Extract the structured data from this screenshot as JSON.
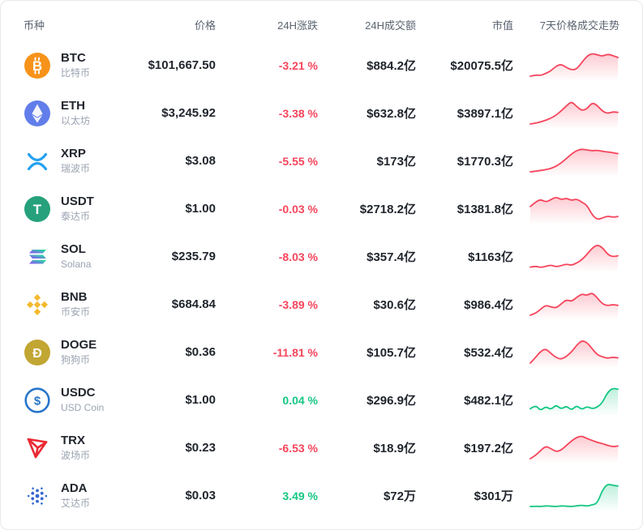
{
  "header": {
    "coin": "币种",
    "price": "价格",
    "change_24h": "24H涨跌",
    "volume_24h": "24H成交额",
    "market_cap": "市值",
    "trend_7d": "7天价格成交走势"
  },
  "colors": {
    "up": "#16c784",
    "down": "#f5455c"
  },
  "rows": [
    {
      "symbol": "BTC",
      "name": "比特币",
      "icon": "btc",
      "price": "$101,667.50",
      "change": "-3.21 %",
      "trend": "down",
      "volume": "$884.2亿",
      "market_cap": "$20075.5亿",
      "sparkline": [
        14,
        18,
        16,
        22,
        30,
        44,
        50,
        40,
        33,
        35,
        55,
        74,
        82,
        78,
        74,
        80,
        76,
        70
      ]
    },
    {
      "symbol": "ETH",
      "name": "以太坊",
      "icon": "eth",
      "price": "$3,245.92",
      "change": "-3.38 %",
      "trend": "down",
      "volume": "$632.8亿",
      "market_cap": "$3897.1亿",
      "sparkline": [
        10,
        13,
        17,
        23,
        30,
        40,
        55,
        72,
        88,
        70,
        56,
        62,
        84,
        74,
        54,
        46,
        52,
        50
      ]
    },
    {
      "symbol": "XRP",
      "name": "瑞波币",
      "icon": "xrp",
      "price": "$3.08",
      "change": "-5.55 %",
      "trend": "down",
      "volume": "$173亿",
      "market_cap": "$1770.3亿",
      "sparkline": [
        8,
        10,
        13,
        16,
        20,
        28,
        40,
        56,
        72,
        85,
        90,
        87,
        84,
        86,
        82,
        80,
        77,
        74
      ]
    },
    {
      "symbol": "USDT",
      "name": "泰达币",
      "icon": "usdt",
      "price": "$1.00",
      "change": "-0.03 %",
      "trend": "down",
      "volume": "$2718.2亿",
      "market_cap": "$1381.8亿",
      "sparkline": [
        55,
        66,
        73,
        66,
        72,
        79,
        72,
        76,
        70,
        74,
        66,
        58,
        34,
        22,
        26,
        31,
        28,
        30
      ]
    },
    {
      "symbol": "SOL",
      "name": "Solana",
      "icon": "sol",
      "price": "$235.79",
      "change": "-8.03 %",
      "trend": "down",
      "volume": "$357.4亿",
      "market_cap": "$1163亿",
      "sparkline": [
        25,
        28,
        24,
        27,
        31,
        26,
        29,
        34,
        30,
        37,
        46,
        62,
        80,
        90,
        82,
        62,
        55,
        58
      ]
    },
    {
      "symbol": "BNB",
      "name": "币安币",
      "icon": "bnb",
      "price": "$684.84",
      "change": "-3.89 %",
      "trend": "down",
      "volume": "$30.6亿",
      "market_cap": "$986.4亿",
      "sparkline": [
        14,
        20,
        34,
        48,
        42,
        38,
        52,
        66,
        60,
        74,
        86,
        80,
        90,
        72,
        52,
        46,
        50,
        47
      ]
    },
    {
      "symbol": "DOGE",
      "name": "狗狗币",
      "icon": "doge",
      "price": "$0.36",
      "change": "-11.81 %",
      "trend": "down",
      "volume": "$105.7亿",
      "market_cap": "$532.4亿",
      "sparkline": [
        24,
        40,
        58,
        66,
        52,
        40,
        35,
        43,
        56,
        76,
        90,
        84,
        66,
        48,
        42,
        38,
        41,
        39
      ]
    },
    {
      "symbol": "USDC",
      "name": "USD Coin",
      "icon": "usdc",
      "price": "$1.00",
      "change": "0.04 %",
      "trend": "up",
      "volume": "$296.9亿",
      "market_cap": "$482.1亿",
      "sparkline": [
        48,
        56,
        44,
        53,
        46,
        56,
        47,
        54,
        45,
        55,
        46,
        53,
        48,
        51,
        60,
        80,
        88,
        86
      ]
    },
    {
      "symbol": "TRX",
      "name": "波场币",
      "icon": "trx",
      "price": "$0.23",
      "change": "-6.53 %",
      "trend": "down",
      "volume": "$18.9亿",
      "market_cap": "$197.2亿",
      "sparkline": [
        18,
        28,
        44,
        58,
        50,
        40,
        45,
        60,
        74,
        86,
        90,
        82,
        76,
        70,
        66,
        60,
        56,
        58
      ]
    },
    {
      "symbol": "ADA",
      "name": "艾达币",
      "icon": "ada",
      "price": "$0.03",
      "change": "3.49 %",
      "trend": "up",
      "volume": "$72万",
      "market_cap": "$301万",
      "sparkline": [
        20,
        21,
        20,
        22,
        21,
        20,
        22,
        21,
        20,
        22,
        24,
        21,
        25,
        30,
        72,
        92,
        87,
        85
      ]
    }
  ]
}
